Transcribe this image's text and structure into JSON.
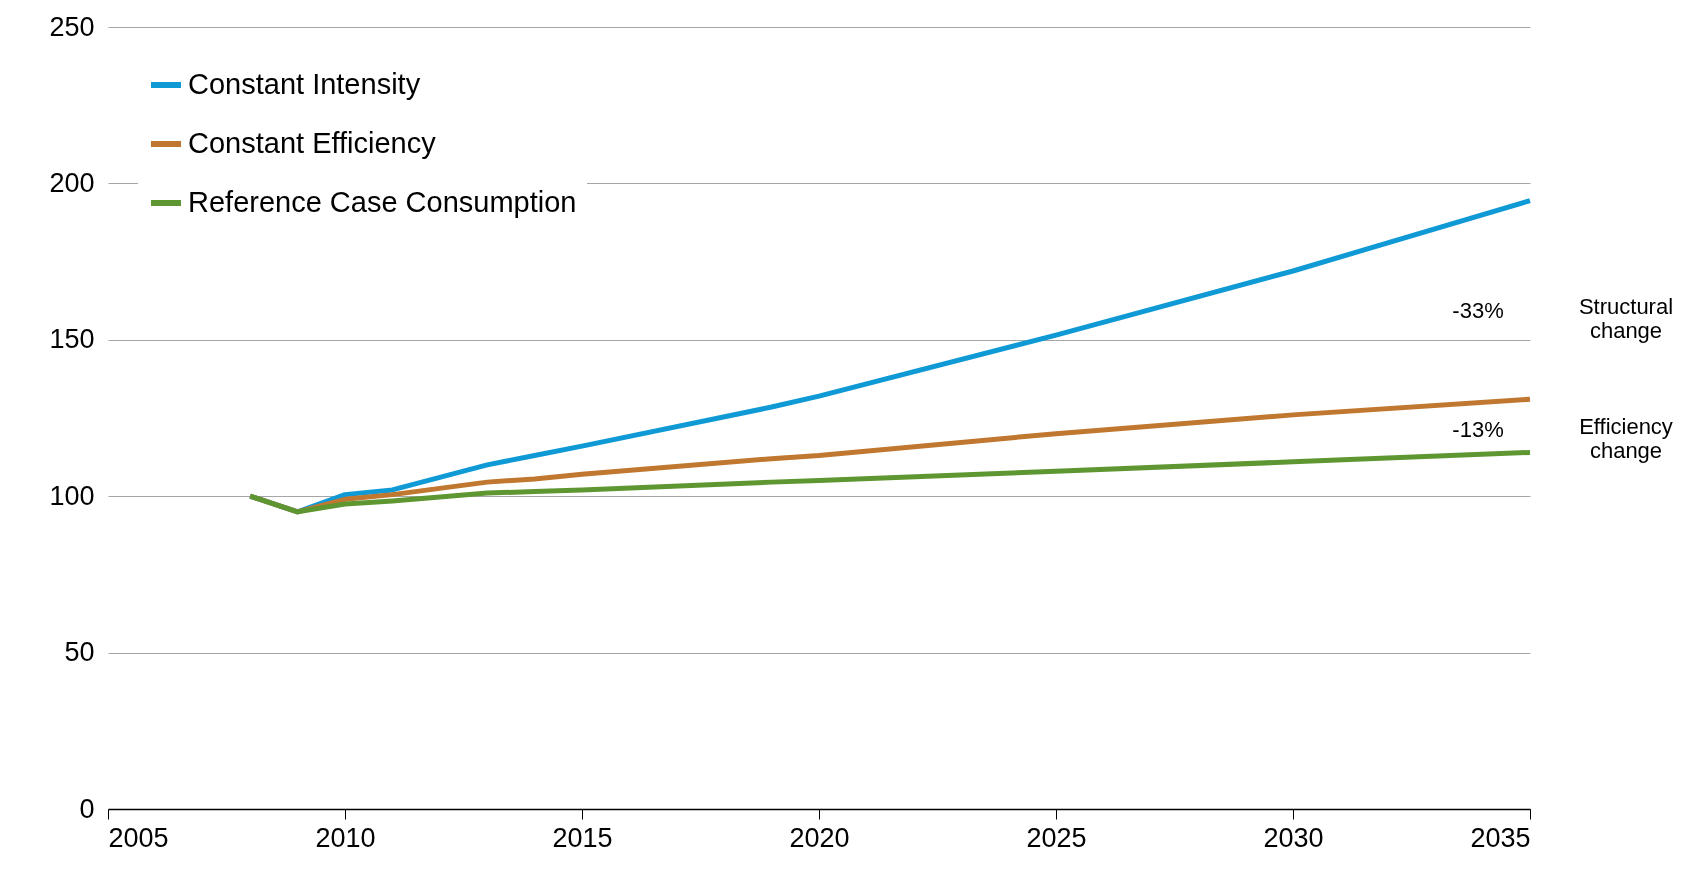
{
  "chart_data": {
    "type": "line",
    "x": [
      2008,
      2009,
      2010,
      2011,
      2013,
      2014,
      2015,
      2019,
      2020,
      2025,
      2030,
      2035
    ],
    "series": [
      {
        "name": "Constant Intensity",
        "color": "#0f9ad6",
        "values": [
          100,
          95,
          100.5,
          102,
          110,
          113,
          116,
          128.5,
          132,
          151.5,
          172,
          194.5
        ]
      },
      {
        "name": "Constant Efficiency",
        "color": "#c0772f",
        "values": [
          100,
          95,
          99,
          100.5,
          104.5,
          105.5,
          107,
          112,
          113,
          120,
          126,
          131
        ]
      },
      {
        "name": "Reference Case Consumption",
        "color": "#5e9732",
        "values": [
          100,
          95,
          97.5,
          98.5,
          101,
          101.5,
          102,
          104.5,
          105,
          108,
          111,
          114
        ]
      }
    ],
    "xlim": [
      2005,
      2035
    ],
    "xticks": [
      2005,
      2010,
      2015,
      2020,
      2025,
      2030,
      2035
    ],
    "ylim": [
      0,
      250
    ],
    "yticks": [
      0,
      50,
      100,
      150,
      200,
      250
    ],
    "grid": "y",
    "legend": "top left",
    "marker": "none",
    "line_style": "solid",
    "annotations": [
      "-33%",
      "Structural change",
      "-13%",
      "Efficiency change"
    ]
  }
}
